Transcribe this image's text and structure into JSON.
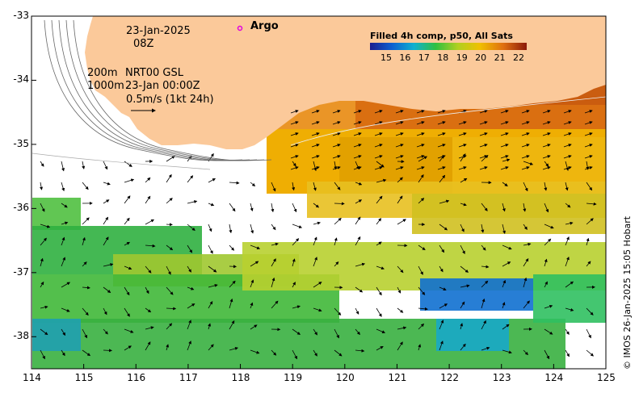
{
  "map": {
    "date": "23-Jan-2025",
    "hour": "08Z",
    "argo_label": "Argo",
    "depth_labels": [
      "200m",
      "1000m"
    ],
    "product": "NRT00 GSL",
    "product_time": "23-Jan 00:00Z",
    "velocity_scale": "0.5m/s (1kt 24h)",
    "legend_title": "Filled 4h comp, p50, All Sats",
    "legend_ticks": [
      "15",
      "16",
      "17",
      "18",
      "19",
      "20",
      "21",
      "22"
    ],
    "credit": "© IMOS 26-Jan-2025 15:05 Hobart",
    "lon_ticks": [
      "114",
      "115",
      "116",
      "117",
      "118",
      "119",
      "120",
      "121",
      "122",
      "123",
      "124",
      "125"
    ],
    "lat_ticks": [
      "-33",
      "-34",
      "-35",
      "-36",
      "-37",
      "-38"
    ],
    "lon_range": [
      114,
      125
    ],
    "lat_range": [
      -38.5,
      -33
    ],
    "colors": {
      "land": "#fbc99a",
      "argo": "#e000e0",
      "cmap_low": "#1a1d8f",
      "cmap_high": "#8b1a0a"
    }
  }
}
